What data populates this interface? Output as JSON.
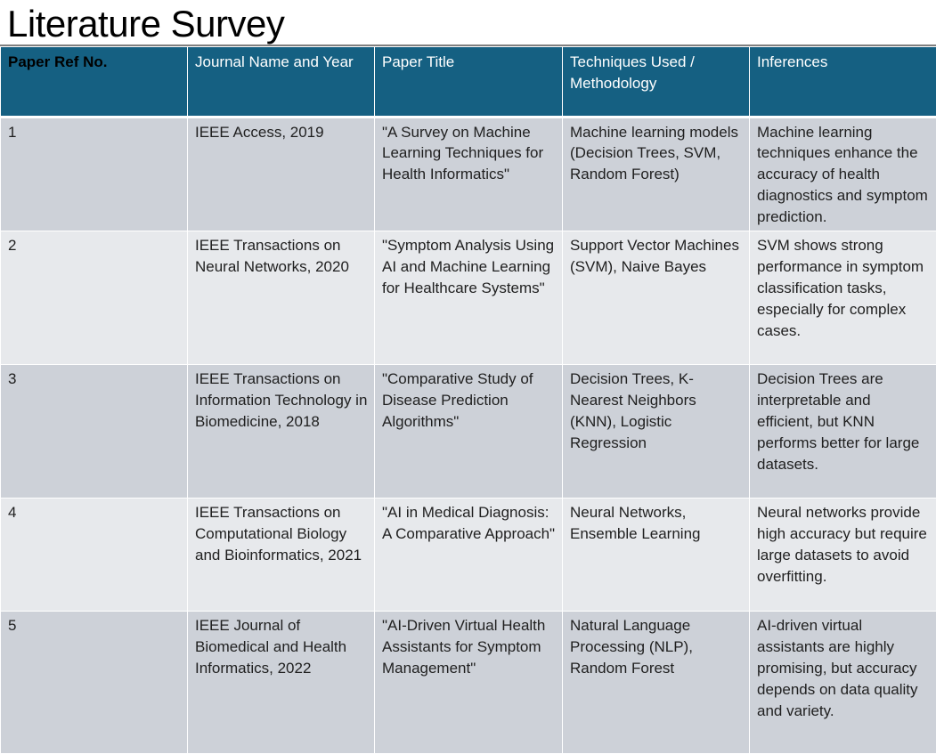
{
  "title": "Literature Survey",
  "table": {
    "headers": [
      "Paper Ref No.",
      "Journal Name and Year",
      "Paper Title",
      "Techniques Used / Methodology",
      "Inferences"
    ],
    "rows": [
      {
        "ref": "1",
        "journal": "IEEE Access, 2019",
        "title": "\"A Survey on Machine Learning Techniques for Health Informatics\"",
        "techniques": "Machine learning models (Decision Trees, SVM, Random Forest)",
        "inferences": "Machine learning techniques enhance the accuracy of health diagnostics and symptom prediction."
      },
      {
        "ref": "2",
        "journal": "IEEE Transactions on Neural Networks, 2020",
        "title": "\"Symptom Analysis Using AI and Machine Learning for Healthcare Systems\"",
        "techniques": "Support Vector Machines (SVM), Naive Bayes",
        "inferences": "SVM shows strong performance in symptom classification tasks, especially for complex cases."
      },
      {
        "ref": "3",
        "journal": "IEEE Transactions on Information Technology in Biomedicine, 2018",
        "title": "\"Comparative Study of Disease Prediction Algorithms\"",
        "techniques": "Decision Trees, K-Nearest Neighbors (KNN), Logistic Regression",
        "inferences": "Decision Trees are interpretable and efficient, but KNN performs better for large datasets."
      },
      {
        "ref": "4",
        "journal": "IEEE Transactions on Computational Biology and Bioinformatics, 2021",
        "title": "\"AI in Medical Diagnosis: A Comparative Approach\"",
        "techniques": "Neural Networks, Ensemble Learning",
        "inferences": "Neural networks provide high accuracy but require large datasets to avoid overfitting."
      },
      {
        "ref": "5",
        "journal": "IEEE Journal of Biomedical and Health Informatics, 2022",
        "title": "\"AI-Driven Virtual Health Assistants for Symptom Management\"",
        "techniques": "Natural Language Processing (NLP), Random Forest",
        "inferences": "AI-driven virtual assistants are highly promising, but accuracy depends on data quality and variety."
      }
    ]
  },
  "colors": {
    "header_bg": "#156082",
    "row_dark": "#cdd1d8",
    "row_light": "#e7e9ec"
  }
}
